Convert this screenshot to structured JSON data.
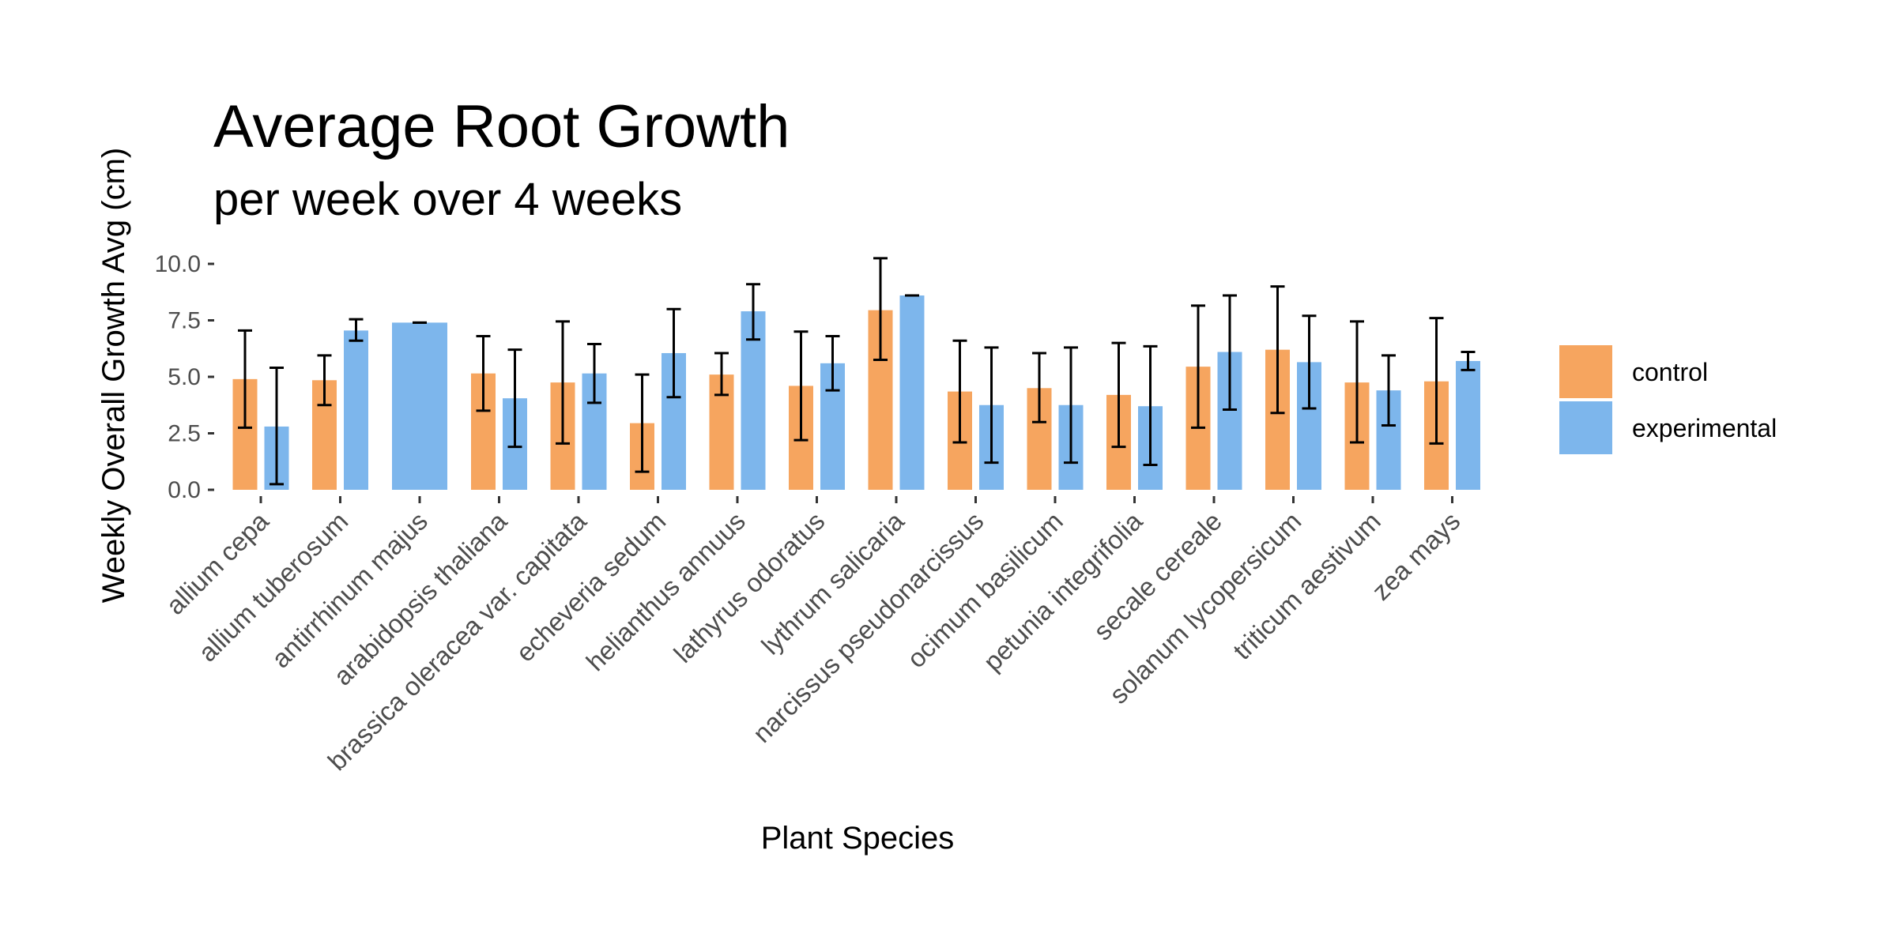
{
  "chart_data": {
    "type": "bar",
    "title": "Average Root Growth",
    "subtitle": "per week over 4 weeks",
    "xlabel": "Plant Species",
    "ylabel": "Weekly Overall Growth Avg (cm)",
    "ylim": [
      0,
      10.5
    ],
    "yticks": [
      0,
      2.5,
      5,
      7.5,
      10
    ],
    "ytick_labels": [
      "0.0",
      "2.5",
      "5.0",
      "7.5",
      "10.0"
    ],
    "grid": false,
    "legend_position": "right",
    "categories": [
      "allium cepa",
      "allium tuberosum",
      "antirrhinum majus",
      "arabidopsis thaliana",
      "brassica oleracea var. capitata",
      "echeveria sedum",
      "helianthus annuus",
      "lathyrus odoratus",
      "lythrum salicaria",
      "narcissus pseudonarcissus",
      "ocimum basilicum",
      "petunia integrifolia",
      "secale cereale",
      "solanum lycopersicum",
      "triticum aestivum",
      "zea mays"
    ],
    "series": [
      {
        "name": "control",
        "color": "#F6A55F",
        "values": [
          4.9,
          4.85,
          null,
          5.15,
          4.75,
          2.95,
          5.1,
          4.6,
          7.95,
          4.35,
          4.5,
          4.2,
          5.45,
          6.2,
          4.75,
          4.8
        ],
        "err_low": [
          2.75,
          3.75,
          null,
          3.5,
          2.05,
          0.8,
          4.2,
          2.2,
          5.75,
          2.1,
          3.0,
          1.9,
          2.75,
          3.4,
          2.1,
          2.05
        ],
        "err_high": [
          7.05,
          5.95,
          null,
          6.8,
          7.45,
          5.1,
          6.05,
          7.0,
          10.25,
          6.6,
          6.05,
          6.5,
          8.15,
          9.0,
          7.45,
          7.6
        ]
      },
      {
        "name": "experimental",
        "color": "#7DB6EC",
        "values": [
          2.8,
          7.05,
          7.4,
          4.05,
          5.15,
          6.05,
          7.9,
          5.6,
          8.6,
          3.75,
          3.75,
          3.7,
          6.1,
          5.65,
          4.4,
          5.7
        ],
        "err_low": [
          0.25,
          6.6,
          7.4,
          1.9,
          3.85,
          4.1,
          6.65,
          4.4,
          8.6,
          1.2,
          1.2,
          1.1,
          3.55,
          3.6,
          2.85,
          5.3
        ],
        "err_high": [
          5.4,
          7.55,
          7.4,
          6.2,
          6.45,
          8.0,
          9.1,
          6.8,
          8.6,
          6.3,
          6.3,
          6.35,
          8.6,
          7.7,
          5.95,
          6.1
        ]
      }
    ]
  }
}
